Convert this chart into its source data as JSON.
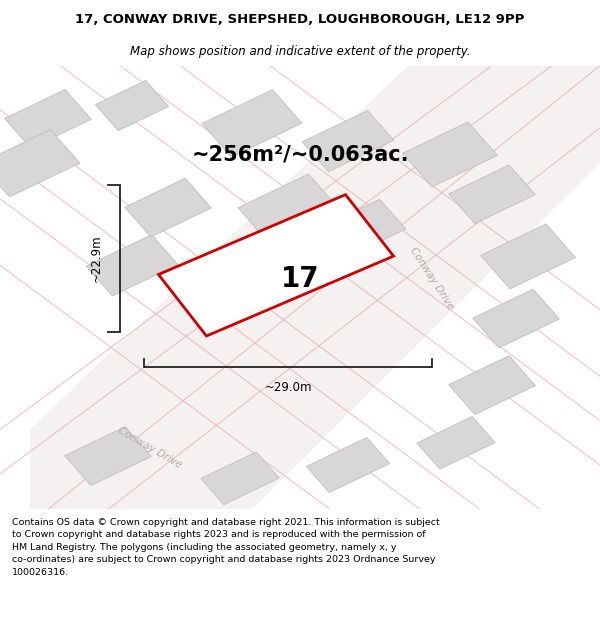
{
  "title_line1": "17, CONWAY DRIVE, SHEPSHED, LOUGHBOROUGH, LE12 9PP",
  "title_line2": "Map shows position and indicative extent of the property.",
  "area_text": "~256m²/~0.063ac.",
  "dim_width": "~29.0m",
  "dim_height": "~22.9m",
  "plot_number": "17",
  "street_name_right": "Conway Drive",
  "street_name_bottom": "Conway Drive",
  "footer_text": "Contains OS data © Crown copyright and database right 2021. This information is subject\nto Crown copyright and database rights 2023 and is reproduced with the permission of\nHM Land Registry. The polygons (including the associated geometry, namely x, y\nco-ordinates) are subject to Crown copyright and database rights 2023 Ordnance Survey\n100026316.",
  "bg_color": "#ffffff",
  "building_fill": "#d8d6d6",
  "building_edge": "#c0bebe",
  "highlight_color": "#cc0000",
  "road_line_color": "#e8a8a8",
  "road_fill": "#f2ecec",
  "dim_color": "#222222",
  "map_bg": "#f7f4f4",
  "title_fontsize": 9.5,
  "subtitle_fontsize": 8.5,
  "area_fontsize": 15,
  "plot_num_fontsize": 20
}
